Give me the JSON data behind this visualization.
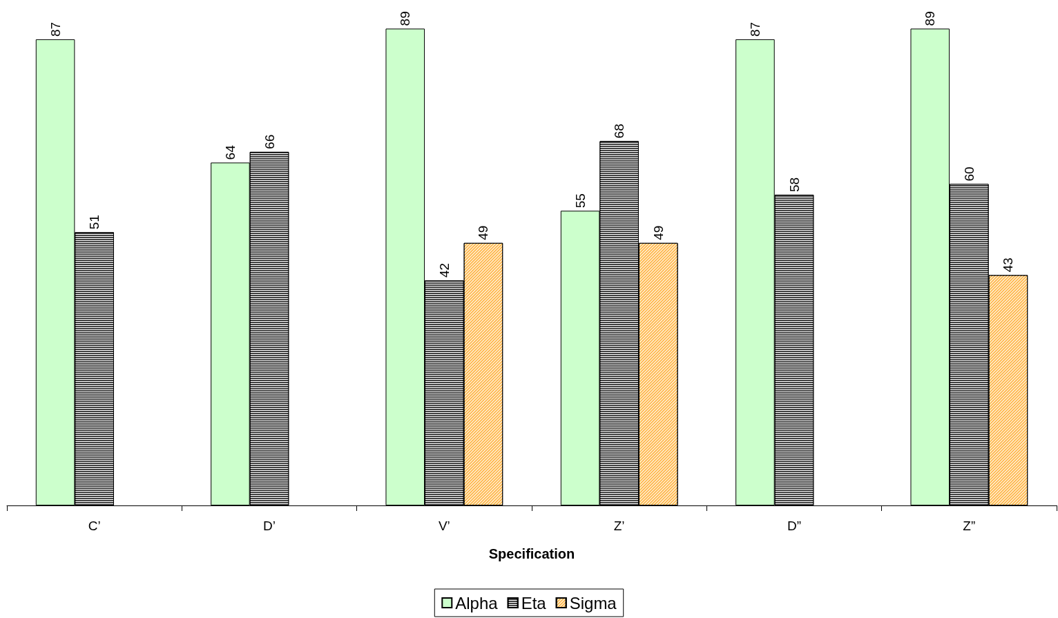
{
  "chart_data": {
    "type": "bar",
    "xlabel": "Specification",
    "categories": [
      "C’",
      "D’",
      "V’",
      "Z’",
      "D”",
      "Z”"
    ],
    "series": [
      {
        "name": "Alpha",
        "color": "#ccffcc",
        "values": [
          87,
          64,
          89,
          55,
          87,
          89
        ]
      },
      {
        "name": "Eta",
        "color": "#404040",
        "values": [
          51,
          66,
          42,
          68,
          58,
          60
        ]
      },
      {
        "name": "Sigma",
        "color": "#ffb84d",
        "values": [
          null,
          null,
          49,
          49,
          null,
          43
        ]
      }
    ],
    "data_labels": true,
    "legend": "bottom"
  }
}
